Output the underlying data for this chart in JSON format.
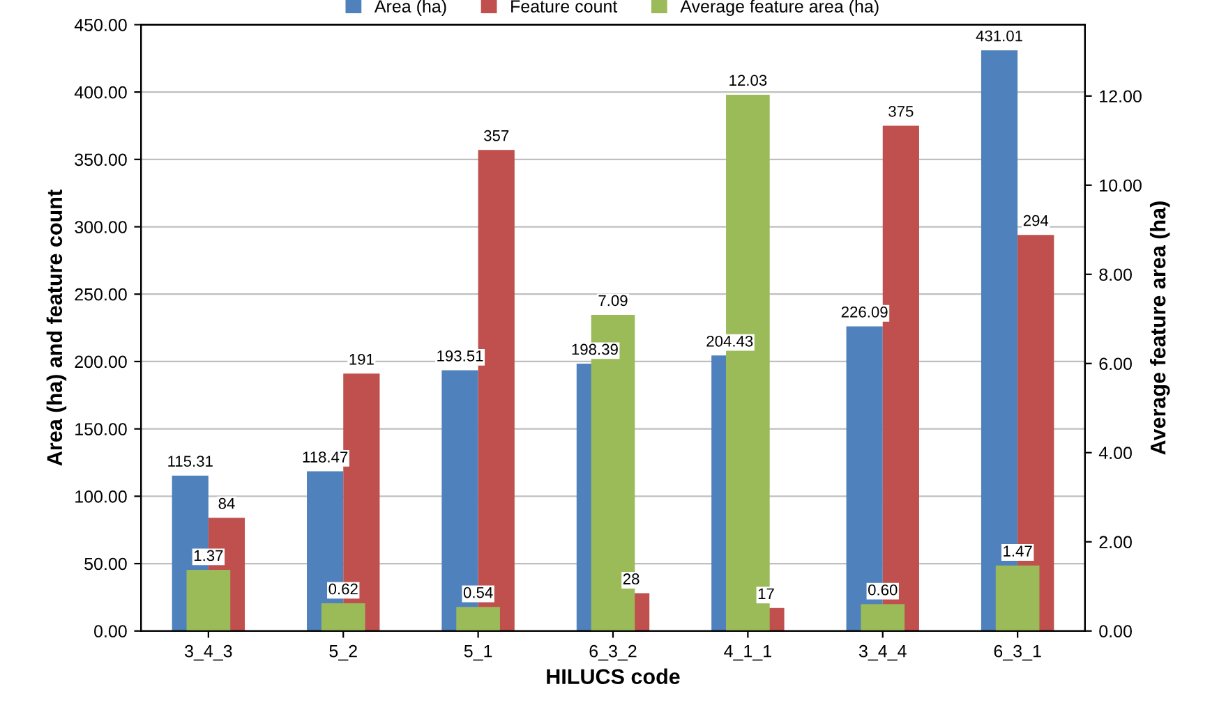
{
  "chart_data": {
    "type": "bar",
    "xlabel": "HILUCS code",
    "ylabel": "Area (ha) and feature count",
    "y2label": "Average feature area (ha)",
    "categories": [
      "3_4_3",
      "5_2",
      "5_1",
      "6_3_2",
      "4_1_1",
      "3_4_4",
      "6_3_1"
    ],
    "series": [
      {
        "name": "Area (ha)",
        "color": "#4f81bd",
        "values": [
          115.31,
          118.47,
          193.51,
          198.39,
          204.43,
          226.09,
          431.01
        ],
        "value_labels": [
          "115.31",
          "118.47",
          "193.51",
          "198.39",
          "204.43",
          "226.09",
          "431.01"
        ]
      },
      {
        "name": "Feature count",
        "color": "#c0504d",
        "values": [
          84,
          191,
          357,
          28,
          17,
          375,
          294
        ],
        "value_labels": [
          "84",
          "191",
          "357",
          "28",
          "17",
          "375",
          "294"
        ]
      },
      {
        "name": "Average feature area (ha)",
        "color": "#9bbb59",
        "axis": "y2",
        "values": [
          1.37,
          0.62,
          0.54,
          7.09,
          12.03,
          0.6,
          1.47
        ],
        "value_labels": [
          "1.37",
          "0.62",
          "0.54",
          "7.09",
          "12.03",
          "0.60",
          "1.47"
        ]
      }
    ],
    "ylim": [
      0,
      450
    ],
    "yticks": [
      {
        "value": 0,
        "label": "0.00"
      },
      {
        "value": 50,
        "label": "50.00"
      },
      {
        "value": 100,
        "label": "100.00"
      },
      {
        "value": 150,
        "label": "150.00"
      },
      {
        "value": 200,
        "label": "200.00"
      },
      {
        "value": 250,
        "label": "250.00"
      },
      {
        "value": 300,
        "label": "300.00"
      },
      {
        "value": 350,
        "label": "350.00"
      },
      {
        "value": 400,
        "label": "400.00"
      },
      {
        "value": 450,
        "label": "450.00"
      }
    ],
    "y2lim": [
      0,
      13.6
    ],
    "y2ticks": [
      {
        "value": 0,
        "label": "0.00"
      },
      {
        "value": 2,
        "label": "2.00"
      },
      {
        "value": 4,
        "label": "4.00"
      },
      {
        "value": 6,
        "label": "6.00"
      },
      {
        "value": 8,
        "label": "8.00"
      },
      {
        "value": 10,
        "label": "10.00"
      },
      {
        "value": 12,
        "label": "12.00"
      }
    ],
    "grid": "y",
    "legend": "top"
  }
}
